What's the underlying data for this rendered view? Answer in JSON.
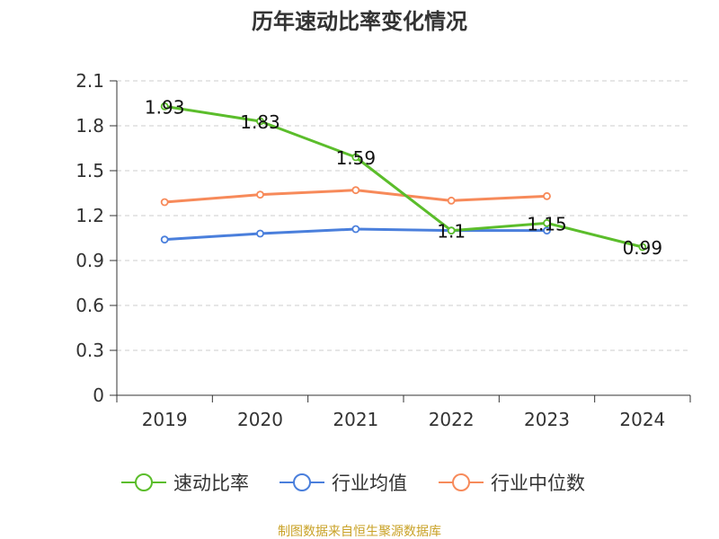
{
  "chart_data": {
    "type": "line",
    "title": "历年速动比率变化情况",
    "categories": [
      "2019",
      "2020",
      "2021",
      "2022",
      "2023",
      "2024"
    ],
    "ylim": [
      0,
      2.1
    ],
    "yticks": [
      "0",
      "0.3",
      "0.6",
      "0.9",
      "1.2",
      "1.5",
      "1.8",
      "2.1"
    ],
    "grid": true,
    "legend_position": "bottom",
    "series": [
      {
        "name": "速动比率",
        "color": "#5bbd2b",
        "values": [
          1.93,
          1.83,
          1.59,
          1.1,
          1.15,
          0.99
        ],
        "labels": [
          "1.93",
          "1.83",
          "1.59",
          "1.1",
          "1.15",
          "0.99"
        ]
      },
      {
        "name": "行业均值",
        "color": "#4a7fdc",
        "values": [
          1.04,
          1.08,
          1.11,
          1.1,
          1.1,
          null
        ]
      },
      {
        "name": "行业中位数",
        "color": "#f78a5a",
        "values": [
          1.29,
          1.34,
          1.37,
          1.3,
          1.33,
          null
        ]
      }
    ]
  },
  "footer": {
    "source": "制图数据来自恒生聚源数据库",
    "source_color": "#c9a227"
  }
}
